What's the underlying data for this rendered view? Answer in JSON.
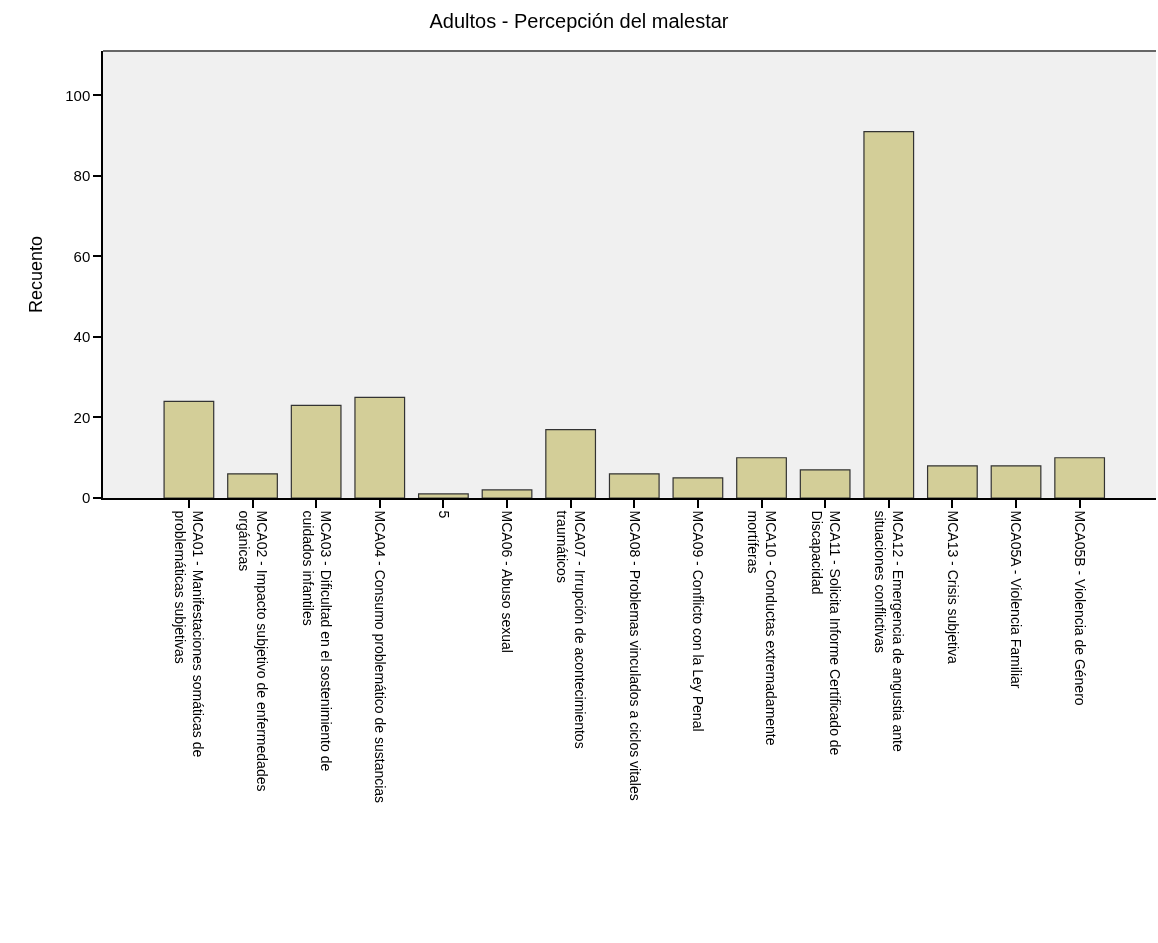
{
  "chart_data": {
    "type": "bar",
    "title": "Adultos - Percepción del malestar",
    "ylabel": "Recuento",
    "categories": [
      "MCA01 - Manifestaciones somáticas de\nproblemáticas subjetivas",
      "MCA02 - Impacto subjetivo de enfermedades\norgánicas",
      "MCA03 - Dificultad en el sostenimiento de\ncuidados infantiles",
      "MCA04 - Consumo problemático de sustancias",
      "5",
      "MCA06 - Abuso sexual",
      "MCA07 - Irrupción de acontecimientos\ntraumáticos",
      "MCA08 - Problemas vinculados a ciclos vitales",
      "MCA09 - Conflicto con la Ley Penal",
      "MCA10 - Conductas extremadamente\nmortíferas",
      "MCA11 - Solicita Informe Certificado de\nDiscapacidad",
      "MCA12 - Emergencia de angustia ante\nsituaciones conflictivas",
      "MCA13 - Crisis subjetiva",
      "MCA05A - Violencia Familiar",
      "MCA05B - Violencia de Género"
    ],
    "values": [
      24,
      6,
      23,
      25,
      1,
      2,
      17,
      6,
      5,
      10,
      7,
      91,
      8,
      8,
      10
    ],
    "color": "#d3ce98",
    "ylim": [
      0,
      111
    ],
    "yticks": [
      0,
      20,
      40,
      60,
      80,
      100
    ],
    "grid": false
  }
}
